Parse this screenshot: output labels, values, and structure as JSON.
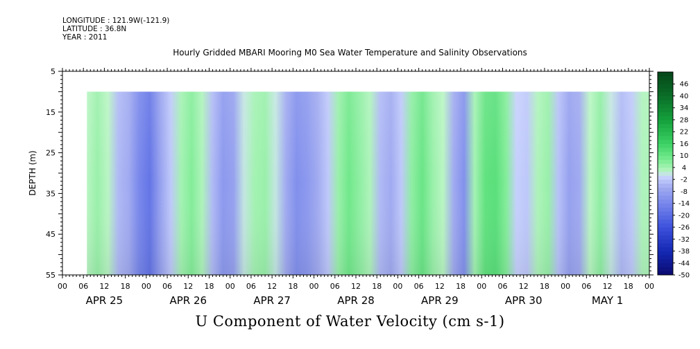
{
  "header": {
    "longitude": "LONGITUDE : 121.9W(-121.9)",
    "latitude": "LATITUDE : 36.8N",
    "year": "YEAR : 2011"
  },
  "title": "Hourly Gridded MBARI Mooring M0 Sea Water Temperature and Salinity Observations",
  "caption": "U Component of Water Velocity (cm s-1)",
  "colors": {
    "strong_negative": "#0b1a8c",
    "negative": "#9aa4f0",
    "near_zero": "#c8d2ff",
    "positive": "#8ef0a4",
    "strong_positive": "#0f7a30"
  },
  "chart_data": {
    "type": "heatmap",
    "variable": "U Component of Water Velocity (cm s-1)",
    "ylabel": "DEPTH (m)",
    "ylim": [
      5,
      55
    ],
    "y_inverted": true,
    "y_ticks": [
      5,
      15,
      25,
      35,
      45,
      55
    ],
    "data_depth_range": [
      10,
      55
    ],
    "x_hour_ticks": [
      "00",
      "06",
      "12",
      "18",
      "00",
      "06",
      "12",
      "18",
      "00",
      "06",
      "12",
      "18",
      "00",
      "06",
      "12",
      "18",
      "00",
      "06",
      "12",
      "18",
      "00",
      "06",
      "12",
      "18",
      "00",
      "06",
      "12",
      "18",
      "00"
    ],
    "x_day_labels": [
      "APR 25",
      "APR 26",
      "APR 27",
      "APR 28",
      "APR 29",
      "APR 30",
      "MAY  1"
    ],
    "time_range_hours": [
      0,
      168
    ],
    "data_start_hour": 7,
    "colorbar_levels": [
      "46",
      "40",
      "34",
      "28",
      "22",
      "16",
      "10",
      "4",
      "-2",
      "-8",
      "-14",
      "-20",
      "-26",
      "-32",
      "-38",
      "-44",
      "-50"
    ],
    "colorbar_range": [
      -50,
      52
    ],
    "column_profile": [
      {
        "hour": 7,
        "value": 2
      },
      {
        "hour": 10,
        "value": 5
      },
      {
        "hour": 13,
        "value": 2
      },
      {
        "hour": 16,
        "value": -4
      },
      {
        "hour": 19,
        "value": -6
      },
      {
        "hour": 22,
        "value": -14
      },
      {
        "hour": 25,
        "value": -18
      },
      {
        "hour": 28,
        "value": -8
      },
      {
        "hour": 31,
        "value": -2
      },
      {
        "hour": 34,
        "value": 4
      },
      {
        "hour": 37,
        "value": 7
      },
      {
        "hour": 40,
        "value": 3
      },
      {
        "hour": 43,
        "value": -4
      },
      {
        "hour": 46,
        "value": -10
      },
      {
        "hour": 49,
        "value": -8
      },
      {
        "hour": 52,
        "value": 1
      },
      {
        "hour": 55,
        "value": 4
      },
      {
        "hour": 58,
        "value": 5
      },
      {
        "hour": 61,
        "value": 1
      },
      {
        "hour": 64,
        "value": -6
      },
      {
        "hour": 67,
        "value": -12
      },
      {
        "hour": 70,
        "value": -10
      },
      {
        "hour": 73,
        "value": -6
      },
      {
        "hour": 76,
        "value": -2
      },
      {
        "hour": 79,
        "value": 5
      },
      {
        "hour": 82,
        "value": 9
      },
      {
        "hour": 85,
        "value": 6
      },
      {
        "hour": 88,
        "value": 3
      },
      {
        "hour": 91,
        "value": -4
      },
      {
        "hour": 94,
        "value": -6
      },
      {
        "hour": 97,
        "value": -2
      },
      {
        "hour": 100,
        "value": 6
      },
      {
        "hour": 103,
        "value": 10
      },
      {
        "hour": 106,
        "value": 5
      },
      {
        "hour": 109,
        "value": 2
      },
      {
        "hour": 112,
        "value": -6
      },
      {
        "hour": 115,
        "value": -12
      },
      {
        "hour": 118,
        "value": 4
      },
      {
        "hour": 121,
        "value": 11
      },
      {
        "hour": 124,
        "value": 12
      },
      {
        "hour": 127,
        "value": 7
      },
      {
        "hour": 130,
        "value": -1
      },
      {
        "hour": 133,
        "value": -2
      },
      {
        "hour": 136,
        "value": 3
      },
      {
        "hour": 139,
        "value": 5
      },
      {
        "hour": 142,
        "value": -3
      },
      {
        "hour": 145,
        "value": -8
      },
      {
        "hour": 148,
        "value": -6
      },
      {
        "hour": 151,
        "value": 2
      },
      {
        "hour": 154,
        "value": 6
      },
      {
        "hour": 157,
        "value": 1
      },
      {
        "hour": 160,
        "value": -4
      },
      {
        "hour": 163,
        "value": -2
      },
      {
        "hour": 166,
        "value": 3
      },
      {
        "hour": 168,
        "value": 3
      }
    ]
  }
}
